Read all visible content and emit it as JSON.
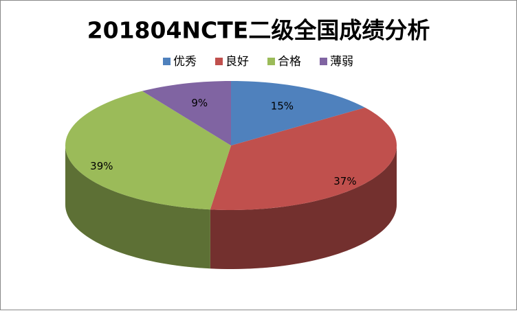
{
  "chart_data": {
    "type": "pie",
    "title": "201804NCTE二级全国成绩分析",
    "categories": [
      "优秀",
      "良好",
      "合格",
      "薄弱"
    ],
    "values": [
      15,
      37,
      39,
      9
    ],
    "value_labels": [
      "15%",
      "37%",
      "39%",
      "9%"
    ],
    "colors": [
      "#4f81bd",
      "#c0504d",
      "#9bbb59",
      "#8064a2"
    ],
    "legend": "top"
  }
}
